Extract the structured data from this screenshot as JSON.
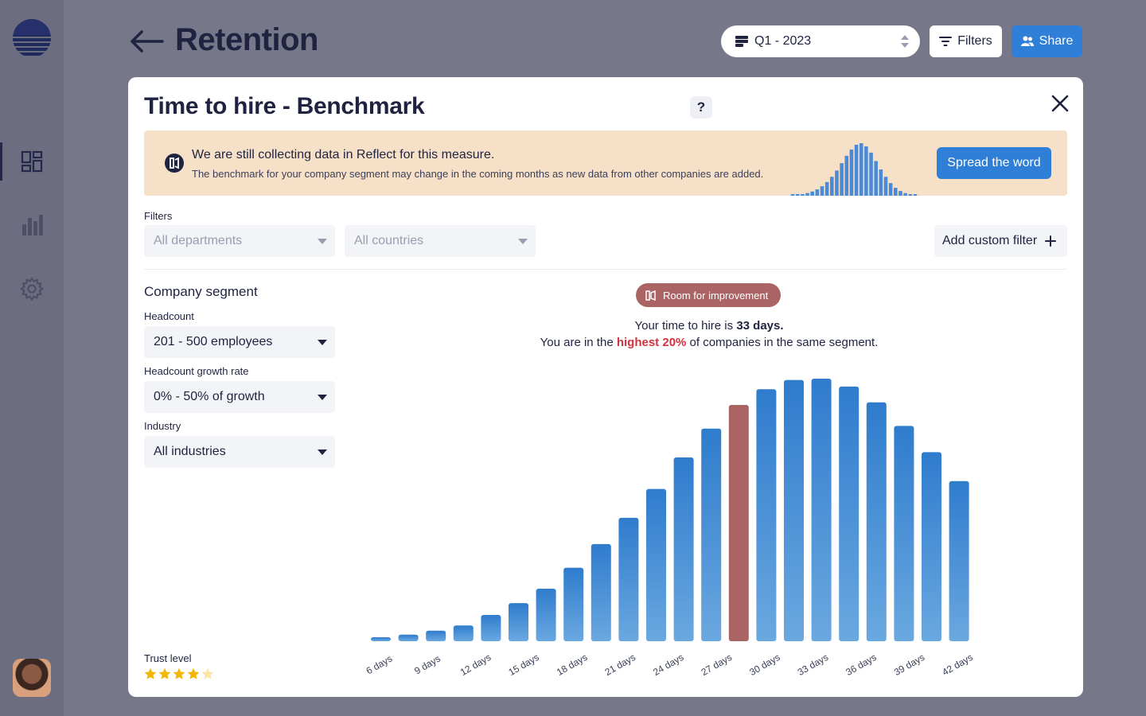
{
  "header": {
    "title": "Retention",
    "period": "Q1 - 2023",
    "filters_label": "Filters",
    "share_label": "Share"
  },
  "sidebar": {
    "items": [
      {
        "icon": "dashboard-icon",
        "active": true
      },
      {
        "icon": "bar-chart-icon",
        "active": false
      },
      {
        "icon": "gear-icon",
        "active": false
      }
    ]
  },
  "modal": {
    "title": "Time to hire - Benchmark",
    "help": "?",
    "banner": {
      "title": "We are still collecting data in Reflect for this measure.",
      "text": "The benchmark for your company segment may change in the coming months as new data from other companies are added.",
      "button": "Spread the word"
    },
    "filters": {
      "label": "Filters",
      "departments_placeholder": "All departments",
      "countries_placeholder": "All countries",
      "custom_filter": "Add custom filter"
    },
    "segment": {
      "title": "Company segment",
      "headcount_label": "Headcount",
      "headcount_value": "201 - 500 employees",
      "growth_label": "Headcount growth rate",
      "growth_value": "0% - 50% of growth",
      "industry_label": "Industry",
      "industry_value": "All industries"
    },
    "trust": {
      "label": "Trust level",
      "rating": 4,
      "max": 5
    },
    "result": {
      "badge": "Room for improvement",
      "line1_prefix": "Your time to hire is ",
      "line1_value": "33 days.",
      "line2_prefix": "You are in the ",
      "line2_highlight": "highest 20%",
      "line2_suffix": " of companies in the same segment."
    }
  },
  "colors": {
    "accent": "#2f7fd8",
    "highlight_bar": "#a96463",
    "bar_top": "#2f7ccd",
    "bar_bottom": "#6aa8e0",
    "warning_bg": "#f6e0c7",
    "negative_text": "#d4303f",
    "star": "#f2b705"
  },
  "chart_data": {
    "type": "bar",
    "x": [
      5,
      6,
      7,
      8,
      9,
      10,
      11,
      12,
      13,
      14,
      15,
      16,
      17,
      18,
      19,
      20,
      21,
      22,
      23,
      24,
      25,
      26
    ],
    "categories": [
      "6 days",
      "9 days",
      "12 days",
      "15 days",
      "18 days",
      "21 days",
      "24 days",
      "27 days",
      "30 days",
      "33 days",
      "36 days",
      "39 days",
      "42 days"
    ],
    "values": [
      1.5,
      2.5,
      4,
      6,
      10,
      14.5,
      20,
      28,
      37,
      47,
      58,
      70,
      81,
      90,
      96,
      99.5,
      100,
      97,
      91,
      82,
      72,
      61
    ],
    "highlight_index": 13,
    "tick_values": [
      6,
      9,
      12,
      15,
      18,
      21,
      24,
      27,
      30,
      33,
      36,
      39,
      42
    ],
    "bins_start": 6,
    "bin_width": 1.71,
    "ylim": [
      0,
      100
    ],
    "grid": false,
    "legend": "none"
  },
  "mini_chart_data": {
    "type": "bar",
    "values": [
      1,
      2,
      3,
      5,
      8,
      12,
      18,
      26,
      36,
      48,
      62,
      76,
      88,
      97,
      100,
      94,
      82,
      66,
      50,
      36,
      24,
      15,
      9,
      5,
      3,
      2
    ]
  }
}
